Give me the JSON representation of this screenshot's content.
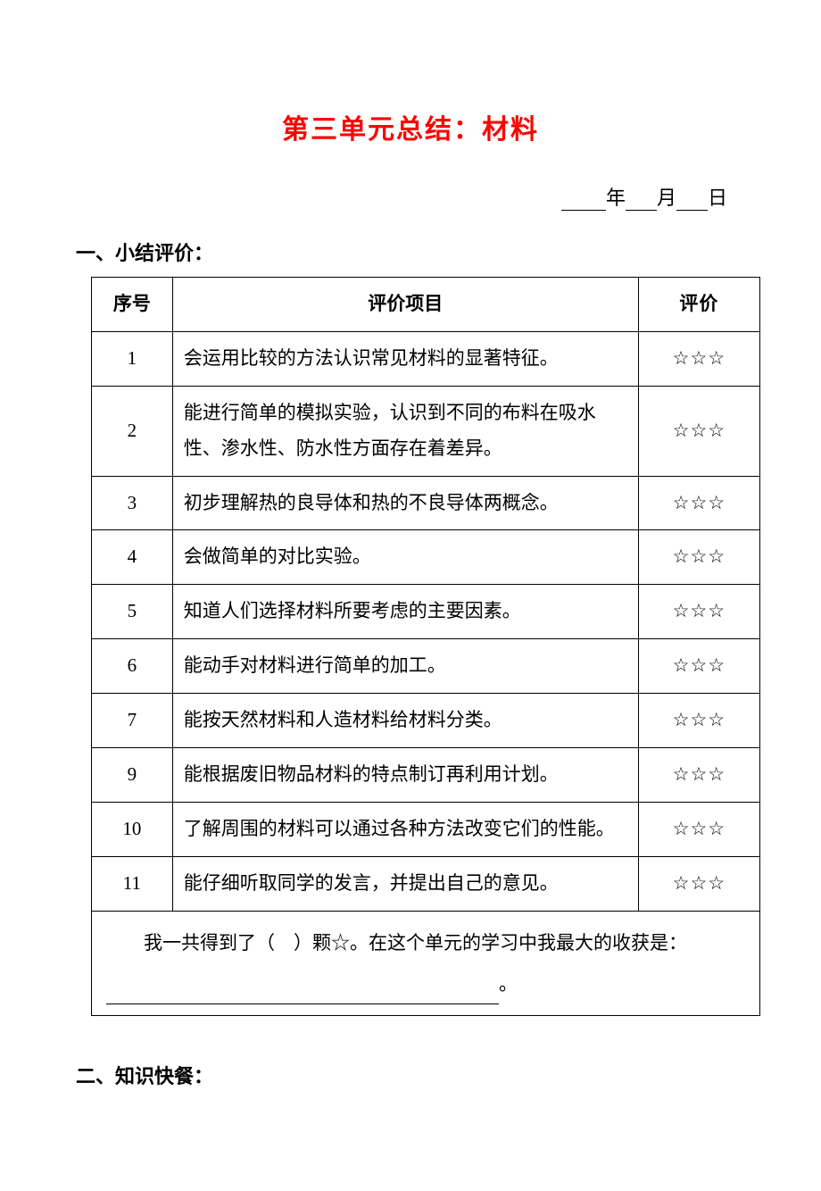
{
  "title": "第三单元总结：材料",
  "date": {
    "year_label": "年",
    "month_label": "月",
    "day_label": "日"
  },
  "section1": {
    "header": "一、小结评价：",
    "columns": {
      "num": "序号",
      "item": "评价项目",
      "rating": "评价"
    },
    "rows": [
      {
        "num": "1",
        "item": "会运用比较的方法认识常见材料的显著特征。",
        "rating": "☆☆☆"
      },
      {
        "num": "2",
        "item": "能进行简单的模拟实验，认识到不同的布料在吸水性、渗水性、防水性方面存在着差异。",
        "rating": "☆☆☆"
      },
      {
        "num": "3",
        "item": "初步理解热的良导体和热的不良导体两概念。",
        "rating": "☆☆☆"
      },
      {
        "num": "4",
        "item": "会做简单的对比实验。",
        "rating": "☆☆☆"
      },
      {
        "num": "5",
        "item": "知道人们选择材料所要考虑的主要因素。",
        "rating": "☆☆☆"
      },
      {
        "num": "6",
        "item": "能动手对材料进行简单的加工。",
        "rating": "☆☆☆"
      },
      {
        "num": "7",
        "item": "能按天然材料和人造材料给材料分类。",
        "rating": "☆☆☆"
      },
      {
        "num": "9",
        "item": "能根据废旧物品材料的特点制订再利用计划。",
        "rating": "☆☆☆"
      },
      {
        "num": "10",
        "item": "了解周围的材料可以通过各种方法改变它们的性能。",
        "rating": "☆☆☆"
      },
      {
        "num": "11",
        "item": "能仔细听取同学的发言，并提出自己的意见。",
        "rating": "☆☆☆"
      }
    ],
    "summary_prefix": "　　我一共得到了（　）颗☆。在这个单元的学习中我最大的收获是：",
    "summary_suffix": "。"
  },
  "section2": {
    "header": "二、知识快餐："
  },
  "colors": {
    "title_color": "#ff0000",
    "text_color": "#000000",
    "border_color": "#000000",
    "background": "#ffffff"
  },
  "typography": {
    "title_fontsize": 30,
    "body_fontsize": 21,
    "header_fontsize": 22,
    "font_family": "SimSun"
  }
}
